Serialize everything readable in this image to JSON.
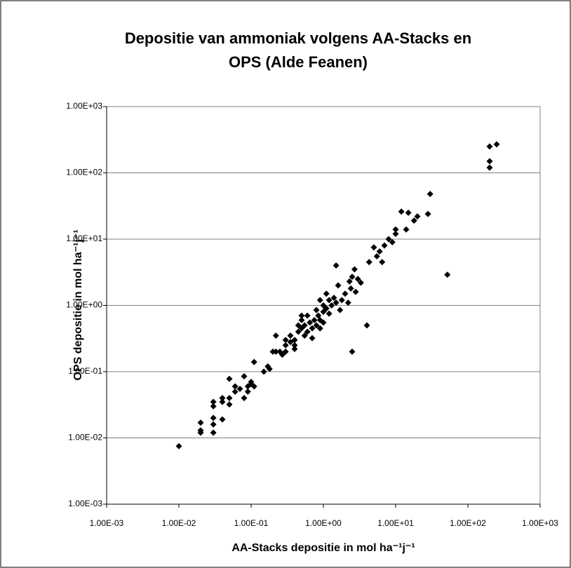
{
  "chart_data": {
    "type": "scatter",
    "title": "Depositie van ammoniak volgens AA-Stacks en OPS (Alde Feanen)",
    "x_label": "AA-Stacks depositie in mol ha⁻¹j⁻¹",
    "y_label": "OPS depositie in mol ha⁻¹j⁻¹",
    "log_x": true,
    "log_y": true,
    "grid": true,
    "color": "#000000",
    "xlim": [
      0.001,
      1000
    ],
    "ylim": [
      0.001,
      1000
    ],
    "xticks": [
      {
        "value": 0.001,
        "label": "1.00E-03"
      },
      {
        "value": 0.01,
        "label": "1.00E-02"
      },
      {
        "value": 0.1,
        "label": "1.00E-01"
      },
      {
        "value": 1,
        "label": "1.00E+00"
      },
      {
        "value": 10,
        "label": "1.00E+01"
      },
      {
        "value": 100,
        "label": "1.00E+02"
      },
      {
        "value": 1000,
        "label": "1.00E+03"
      }
    ],
    "yticks": [
      {
        "value": 0.001,
        "label": "1.00E-03"
      },
      {
        "value": 0.01,
        "label": "1.00E-02"
      },
      {
        "value": 0.1,
        "label": "1.00E-01"
      },
      {
        "value": 1,
        "label": "1.00E+00"
      },
      {
        "value": 10,
        "label": "1.00E+01"
      },
      {
        "value": 100,
        "label": "1.00E+02"
      },
      {
        "value": 1000,
        "label": "1.00E+03"
      }
    ],
    "x": [
      0.01,
      0.02,
      0.02,
      0.02,
      0.03,
      0.03,
      0.03,
      0.03,
      0.03,
      0.04,
      0.04,
      0.04,
      0.05,
      0.05,
      0.05,
      0.06,
      0.06,
      0.07,
      0.08,
      0.08,
      0.09,
      0.09,
      0.1,
      0.1,
      0.11,
      0.11,
      0.15,
      0.17,
      0.18,
      0.2,
      0.22,
      0.22,
      0.25,
      0.27,
      0.3,
      0.3,
      0.3,
      0.35,
      0.35,
      0.4,
      0.4,
      0.4,
      0.45,
      0.45,
      0.5,
      0.5,
      0.5,
      0.55,
      0.55,
      0.6,
      0.6,
      0.65,
      0.7,
      0.7,
      0.75,
      0.8,
      0.8,
      0.85,
      0.9,
      0.9,
      0.9,
      1,
      1,
      1,
      1.1,
      1.1,
      1.2,
      1.2,
      1.3,
      1.4,
      1.5,
      1.5,
      1.6,
      1.7,
      1.8,
      2,
      2.2,
      2.3,
      2.4,
      2.5,
      2.5,
      2.7,
      2.8,
      3,
      3.3,
      4,
      4.3,
      5,
      5.5,
      6,
      6.5,
      7,
      8,
      9,
      10,
      10,
      12,
      14,
      15,
      18,
      20,
      28,
      30,
      52,
      200,
      200,
      200,
      250
    ],
    "values": [
      0.0075,
      0.017,
      0.013,
      0.012,
      0.035,
      0.03,
      0.02,
      0.016,
      0.012,
      0.04,
      0.035,
      0.019,
      0.078,
      0.04,
      0.032,
      0.05,
      0.06,
      0.055,
      0.085,
      0.04,
      0.06,
      0.05,
      0.065,
      0.07,
      0.06,
      0.14,
      0.1,
      0.12,
      0.11,
      0.2,
      0.2,
      0.35,
      0.2,
      0.18,
      0.3,
      0.25,
      0.2,
      0.28,
      0.35,
      0.3,
      0.25,
      0.22,
      0.5,
      0.4,
      0.7,
      0.6,
      0.45,
      0.35,
      0.5,
      0.4,
      0.7,
      0.55,
      0.45,
      0.32,
      0.6,
      0.5,
      0.85,
      0.7,
      1.2,
      0.6,
      0.45,
      1.0,
      0.8,
      0.55,
      1.5,
      0.9,
      1.2,
      0.75,
      1.0,
      1.3,
      1.1,
      4.0,
      2.0,
      0.85,
      1.2,
      1.5,
      1.1,
      2.3,
      1.8,
      0.2,
      2.7,
      3.5,
      1.6,
      2.5,
      2.2,
      0.5,
      4.5,
      7.5,
      5.5,
      6.5,
      4.5,
      8,
      10,
      9,
      14,
      12,
      26,
      14,
      25,
      19,
      22,
      24,
      48,
      2.9,
      120,
      150,
      250,
      270
    ]
  }
}
